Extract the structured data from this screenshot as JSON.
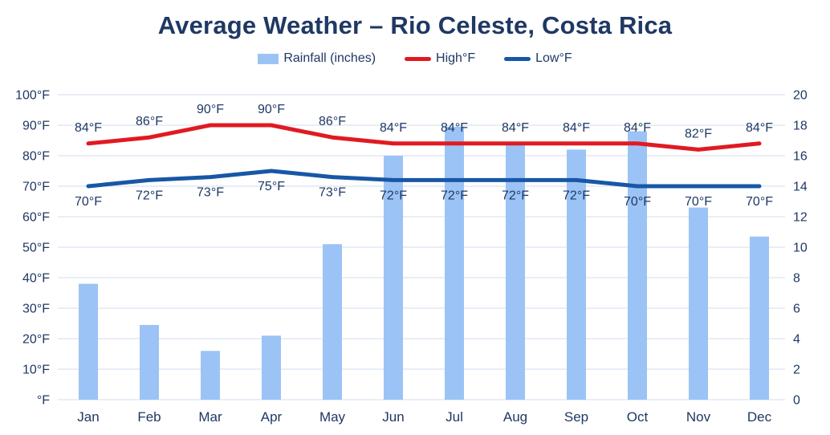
{
  "title": "Average Weather – Rio Celeste, Costa Rica",
  "legend": [
    {
      "label": "Rainfall (inches)",
      "swatch": "bar-swatch",
      "color": "#9CC3F5"
    },
    {
      "label": "High°F",
      "swatch": "line-swatch",
      "color": "#E01A22"
    },
    {
      "label": "Low°F",
      "swatch": "line-swatch",
      "color": "#1757A6"
    }
  ],
  "colors": {
    "title_text": "#1F3864",
    "axis_text": "#1F3864",
    "gridline": "#D9E3F2",
    "bar_fill": "#9CC3F5",
    "high_line": "#E01A22",
    "low_line": "#1757A6",
    "background": "#FFFFFF"
  },
  "chart_data": {
    "type": "combo",
    "title": "Average Weather – Rio Celeste, Costa Rica",
    "categories": [
      "Jan",
      "Feb",
      "Mar",
      "Apr",
      "May",
      "Jun",
      "Jul",
      "Aug",
      "Sep",
      "Oct",
      "Nov",
      "Dec"
    ],
    "series": [
      {
        "name": "Rainfall (inches)",
        "type": "bar",
        "axis": "right",
        "color": "#9CC3F5",
        "values": [
          7.6,
          4.9,
          3.2,
          4.2,
          10.2,
          16.0,
          17.9,
          16.7,
          16.4,
          17.6,
          12.6,
          10.7
        ]
      },
      {
        "name": "High°F",
        "type": "line",
        "axis": "left",
        "color": "#E01A22",
        "values": [
          84,
          86,
          90,
          90,
          86,
          84,
          84,
          84,
          84,
          84,
          82,
          84
        ],
        "labels": [
          "84°F",
          "86°F",
          "90°F",
          "90°F",
          "86°F",
          "84°F",
          "84°F",
          "84°F",
          "84°F",
          "84°F",
          "82°F",
          "84°F"
        ]
      },
      {
        "name": "Low°F",
        "type": "line",
        "axis": "left",
        "color": "#1757A6",
        "values": [
          70,
          72,
          73,
          75,
          73,
          72,
          72,
          72,
          72,
          70,
          70,
          70
        ],
        "labels": [
          "70°F",
          "72°F",
          "73°F",
          "75°F",
          "73°F",
          "72°F",
          "72°F",
          "72°F",
          "72°F",
          "70°F",
          "70°F",
          "70°F"
        ]
      }
    ],
    "left_axis": {
      "min": 0,
      "max": 100,
      "step": 10,
      "ticks": [
        "100°F",
        "90°F",
        "80°F",
        "70°F",
        "60°F",
        "50°F",
        "40°F",
        "30°F",
        "20°F",
        "10°F",
        "°F"
      ]
    },
    "right_axis": {
      "min": 0,
      "max": 20,
      "step": 2,
      "ticks": [
        "20",
        "18",
        "16",
        "14",
        "12",
        "10",
        "8",
        "6",
        "4",
        "2",
        "0"
      ]
    },
    "grid": true,
    "legend_position": "top"
  }
}
